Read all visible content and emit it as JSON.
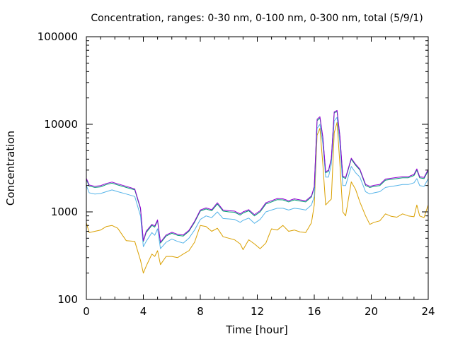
{
  "chart_data": {
    "type": "line",
    "title": "Concentration, ranges: 0-30 nm, 0-100 nm, 0-300 nm, total (5/9/1)",
    "xlabel": "Time [hour]",
    "ylabel": "Concentration",
    "xlim": [
      0,
      24
    ],
    "ylim": [
      100,
      100000
    ],
    "yscale": "log",
    "grid": false,
    "x_ticks": [
      0,
      4,
      8,
      12,
      16,
      20,
      24
    ],
    "x_tick_labels": [
      "0",
      "4",
      "8",
      "12",
      "16",
      "20",
      "24"
    ],
    "y_ticks": [
      100,
      1000,
      10000,
      100000
    ],
    "y_tick_labels": [
      "100",
      "1000",
      "10000",
      "100000"
    ],
    "series": [
      {
        "color": "#DAA000",
        "x": [
          0,
          0.2,
          0.6,
          1.0,
          1.4,
          1.8,
          2.2,
          2.8,
          3.4,
          3.8,
          4.0,
          4.2,
          4.6,
          4.8,
          5.0,
          5.2,
          5.6,
          6.0,
          6.4,
          6.8,
          7.2,
          7.6,
          8.0,
          8.4,
          8.8,
          9.2,
          9.6,
          10.0,
          10.4,
          10.8,
          11.0,
          11.4,
          11.8,
          12.2,
          12.6,
          13.0,
          13.4,
          13.8,
          14.2,
          14.6,
          15.0,
          15.4,
          15.8,
          16.0,
          16.2,
          16.4,
          16.6,
          16.8,
          17.0,
          17.2,
          17.4,
          17.6,
          17.8,
          18.0,
          18.2,
          18.6,
          18.9,
          19.2,
          19.6,
          19.9,
          20.2,
          20.6,
          21.0,
          21.4,
          21.8,
          22.2,
          22.6,
          23.0,
          23.2,
          23.4,
          23.7,
          24
        ],
        "y": [
          750,
          580,
          600,
          620,
          680,
          700,
          650,
          470,
          460,
          280,
          200,
          240,
          330,
          310,
          360,
          250,
          310,
          310,
          300,
          330,
          360,
          450,
          700,
          680,
          600,
          650,
          520,
          500,
          480,
          430,
          370,
          480,
          430,
          380,
          440,
          640,
          620,
          700,
          600,
          620,
          590,
          580,
          750,
          1200,
          7500,
          9000,
          3500,
          1200,
          1300,
          1400,
          8000,
          10500,
          3500,
          1000,
          900,
          2200,
          1800,
          1300,
          900,
          720,
          760,
          790,
          950,
          890,
          870,
          950,
          900,
          880,
          1200,
          900,
          860,
          1200
        ]
      },
      {
        "color": "#56B4E9",
        "x": [
          0,
          0.2,
          0.6,
          1.0,
          1.4,
          1.8,
          2.2,
          2.8,
          3.4,
          3.8,
          4.0,
          4.2,
          4.6,
          4.8,
          5.0,
          5.2,
          5.6,
          6.0,
          6.4,
          6.8,
          7.2,
          7.6,
          8.0,
          8.4,
          8.8,
          9.2,
          9.6,
          10.0,
          10.4,
          10.8,
          11.0,
          11.4,
          11.8,
          12.2,
          12.6,
          13.0,
          13.4,
          13.8,
          14.2,
          14.6,
          15.0,
          15.4,
          15.8,
          16.0,
          16.2,
          16.4,
          16.6,
          16.8,
          17.0,
          17.2,
          17.4,
          17.6,
          17.8,
          18.0,
          18.2,
          18.6,
          18.9,
          19.2,
          19.6,
          19.9,
          20.2,
          20.6,
          21.0,
          21.4,
          21.8,
          22.2,
          22.6,
          23.0,
          23.2,
          23.4,
          23.7,
          24
        ],
        "y": [
          2000,
          1650,
          1600,
          1620,
          1700,
          1780,
          1700,
          1600,
          1500,
          900,
          400,
          460,
          580,
          540,
          640,
          380,
          450,
          490,
          460,
          440,
          500,
          620,
          820,
          900,
          860,
          1000,
          840,
          830,
          820,
          760,
          800,
          850,
          740,
          820,
          1000,
          1050,
          1100,
          1100,
          1050,
          1100,
          1080,
          1050,
          1200,
          1500,
          9000,
          10000,
          6000,
          2500,
          2500,
          3500,
          11000,
          12000,
          6000,
          2000,
          2000,
          3300,
          2800,
          2500,
          1700,
          1600,
          1650,
          1700,
          1900,
          1950,
          2000,
          2050,
          2050,
          2150,
          2400,
          2000,
          1950,
          2400
        ]
      },
      {
        "color": "#009E73",
        "x": [
          0,
          0.2,
          0.6,
          1.0,
          1.4,
          1.8,
          2.2,
          2.8,
          3.4,
          3.8,
          4.0,
          4.2,
          4.6,
          4.8,
          5.0,
          5.2,
          5.6,
          6.0,
          6.4,
          6.8,
          7.2,
          7.6,
          8.0,
          8.4,
          8.8,
          9.2,
          9.6,
          10.0,
          10.4,
          10.8,
          11.0,
          11.4,
          11.8,
          12.2,
          12.6,
          13.0,
          13.4,
          13.8,
          14.2,
          14.6,
          15.0,
          15.4,
          15.8,
          16.0,
          16.2,
          16.4,
          16.6,
          16.8,
          17.0,
          17.2,
          17.4,
          17.6,
          17.8,
          18.0,
          18.2,
          18.6,
          18.9,
          19.2,
          19.6,
          19.9,
          20.2,
          20.6,
          21.0,
          21.4,
          21.8,
          22.2,
          22.6,
          23.0,
          23.2,
          23.4,
          23.7,
          24
        ],
        "y": [
          2350,
          1970,
          1900,
          1930,
          2050,
          2130,
          2030,
          1900,
          1780,
          1080,
          460,
          580,
          700,
          670,
          790,
          440,
          530,
          570,
          540,
          530,
          600,
          760,
          1020,
          1080,
          1030,
          1230,
          1020,
          1000,
          990,
          920,
          970,
          1030,
          900,
          1000,
          1230,
          1300,
          1380,
          1370,
          1300,
          1370,
          1330,
          1300,
          1480,
          1900,
          11000,
          11800,
          7000,
          2800,
          2900,
          4000,
          13500,
          14000,
          7200,
          2500,
          2400,
          4000,
          3400,
          3000,
          2000,
          1900,
          1950,
          2000,
          2300,
          2350,
          2400,
          2450,
          2450,
          2600,
          3000,
          2450,
          2400,
          2950
        ]
      },
      {
        "color": "#9400D3",
        "x": [
          0,
          0.2,
          0.6,
          1.0,
          1.4,
          1.8,
          2.2,
          2.8,
          3.4,
          3.8,
          4.0,
          4.2,
          4.6,
          4.8,
          5.0,
          5.2,
          5.6,
          6.0,
          6.4,
          6.8,
          7.2,
          7.6,
          8.0,
          8.4,
          8.8,
          9.2,
          9.6,
          10.0,
          10.4,
          10.8,
          11.0,
          11.4,
          11.8,
          12.2,
          12.6,
          13.0,
          13.4,
          13.8,
          14.2,
          14.6,
          15.0,
          15.4,
          15.8,
          16.0,
          16.2,
          16.4,
          16.6,
          16.8,
          17.0,
          17.2,
          17.4,
          17.6,
          17.8,
          18.0,
          18.2,
          18.6,
          18.9,
          19.2,
          19.6,
          19.9,
          20.2,
          20.6,
          21.0,
          21.4,
          21.8,
          22.2,
          22.6,
          23.0,
          23.2,
          23.4,
          23.7,
          24
        ],
        "y": [
          2420,
          2030,
          1960,
          1990,
          2110,
          2190,
          2090,
          1960,
          1830,
          1110,
          470,
          600,
          720,
          690,
          810,
          450,
          545,
          585,
          555,
          545,
          615,
          780,
          1050,
          1110,
          1060,
          1270,
          1050,
          1030,
          1020,
          950,
          1000,
          1060,
          930,
          1030,
          1270,
          1340,
          1420,
          1410,
          1340,
          1410,
          1370,
          1340,
          1520,
          1950,
          11400,
          12200,
          7200,
          2880,
          2980,
          4100,
          13900,
          14400,
          7400,
          2570,
          2470,
          4100,
          3500,
          3080,
          2060,
          1960,
          2010,
          2060,
          2370,
          2420,
          2470,
          2520,
          2520,
          2680,
          3100,
          2520,
          2470,
          3050
        ]
      }
    ]
  }
}
